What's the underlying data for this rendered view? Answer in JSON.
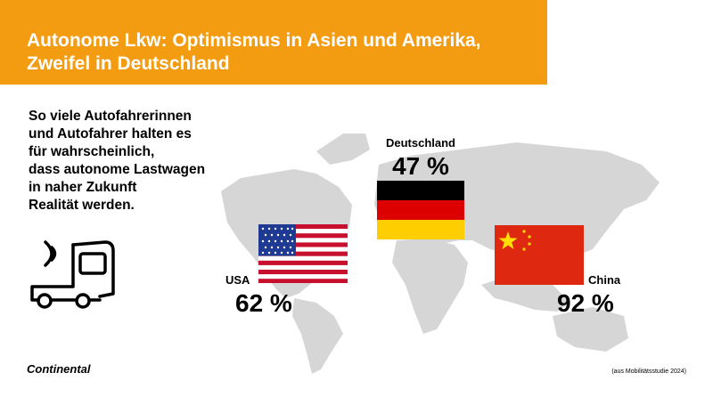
{
  "header": {
    "title_lines": [
      "Autonome Lkw: Optimismus in Asien und Amerika,",
      "Zweifel in Deutschland"
    ]
  },
  "intro": {
    "lines": [
      "So viele Autofahrerinnen",
      "und Autofahrer halten es",
      "für wahrscheinlich,",
      "dass autonome Lastwagen",
      "in naher Zukunft",
      "Realität werden."
    ]
  },
  "countries": [
    {
      "name": "USA",
      "value": "62 %"
    },
    {
      "name": "Deutschland",
      "value": "47 %"
    },
    {
      "name": "China",
      "value": "92 %"
    }
  ],
  "footer": {
    "logo": "Continental",
    "source": "(aus Mobilitätsstudie 2024)"
  }
}
